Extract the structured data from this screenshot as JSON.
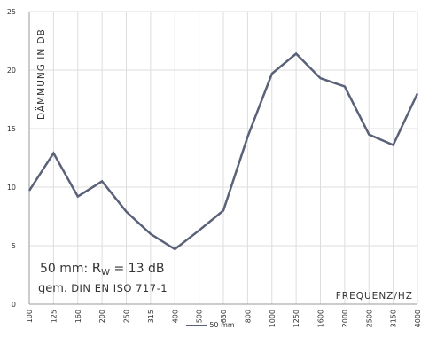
{
  "chart_data": {
    "type": "line",
    "ylabel": "DÄMMUNG IN DB",
    "xlabel": "FREQUENZ/HZ",
    "ylim": [
      0,
      25
    ],
    "yticks": [
      0,
      5,
      10,
      15,
      20,
      25
    ],
    "grid": true,
    "legend_position": "bottom",
    "color": "#5a6178",
    "categories": [
      "100",
      "125",
      "160",
      "200",
      "250",
      "315",
      "400",
      "500",
      "630",
      "800",
      "1000",
      "1250",
      "1600",
      "2000",
      "2500",
      "3150",
      "4000"
    ],
    "series": [
      {
        "name": "50 mm",
        "values": [
          9.7,
          12.9,
          9.2,
          10.5,
          7.9,
          6.0,
          4.7,
          6.3,
          8.0,
          14.3,
          19.7,
          21.4,
          19.3,
          18.6,
          14.5,
          13.6,
          18.0
        ]
      }
    ]
  },
  "annotation": {
    "line1_prefix": "50 mm: ",
    "line1_r": "R",
    "line1_sub": "W",
    "line1_suffix": " = 13 dB",
    "line2_prefix": "gem. ",
    "line2_std": "DIN EN ISO 717-1"
  }
}
